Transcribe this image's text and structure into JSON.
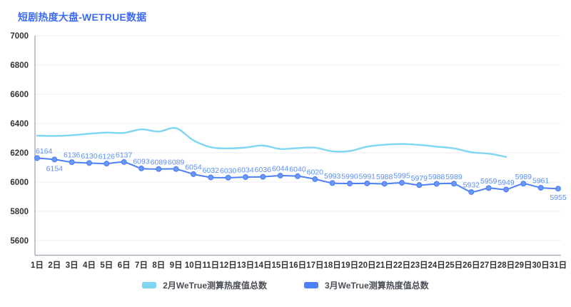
{
  "title": "短剧热度大盘-WETRUE数据",
  "legend": [
    {
      "label": "2月WeTrue测算热度值总数",
      "color": "#7ed6f2"
    },
    {
      "label": "3月WeTrue测算热度值总数",
      "color": "#4d7ff7"
    }
  ],
  "colors": {
    "title": "#3d6bf2",
    "axis_line": "#a6adb8",
    "gridline": "#ededf0",
    "tick_label": "#333333",
    "feb_line": "#7ed6f2",
    "mar_line": "#4d7ff7",
    "mar_point_fill": "#6b97f7",
    "mar_label": "#5b8ff9"
  },
  "chart_data": {
    "type": "line",
    "title": "短剧热度大盘-WETRUE数据",
    "xlabel": "",
    "ylabel": "",
    "x_categories": [
      "1日",
      "2日",
      "3日",
      "4日",
      "5日",
      "6日",
      "7日",
      "8日",
      "9日",
      "10日",
      "11日",
      "12日",
      "13日",
      "14日",
      "15日",
      "16日",
      "17日",
      "18日",
      "19日",
      "20日",
      "21日",
      "22日",
      "23日",
      "24日",
      "25日",
      "26日",
      "27日",
      "28日",
      "29日",
      "30日",
      "31日"
    ],
    "ylim": [
      5500,
      7000
    ],
    "y_ticks": [
      5600,
      5800,
      6000,
      6200,
      6400,
      6600,
      6800,
      7000
    ],
    "grid": true,
    "legend_position": "bottom",
    "series": [
      {
        "name": "2月WeTrue测算热度值总数",
        "color": "#7ed6f2",
        "smooth": true,
        "show_points": false,
        "show_labels": false,
        "values": [
          6317,
          6315,
          6320,
          6330,
          6338,
          6336,
          6360,
          6345,
          6368,
          6285,
          6238,
          6230,
          6236,
          6250,
          6226,
          6232,
          6235,
          6210,
          6212,
          6242,
          6255,
          6260,
          6254,
          6242,
          6230,
          6204,
          6194,
          6172
        ]
      },
      {
        "name": "3月WeTrue测算热度值总数",
        "color": "#4d7ff7",
        "smooth": true,
        "show_points": true,
        "show_labels": true,
        "label_below_days": [
          2,
          31
        ],
        "values": [
          6164,
          6154,
          6136,
          6130,
          6126,
          6137,
          6093,
          6089,
          6089,
          6054,
          6032,
          6030,
          6034,
          6036,
          6044,
          6040,
          6020,
          5993,
          5990,
          5991,
          5988,
          5995,
          5979,
          5988,
          5989,
          5932,
          5959,
          5949,
          5989,
          5961,
          5955
        ]
      }
    ]
  }
}
